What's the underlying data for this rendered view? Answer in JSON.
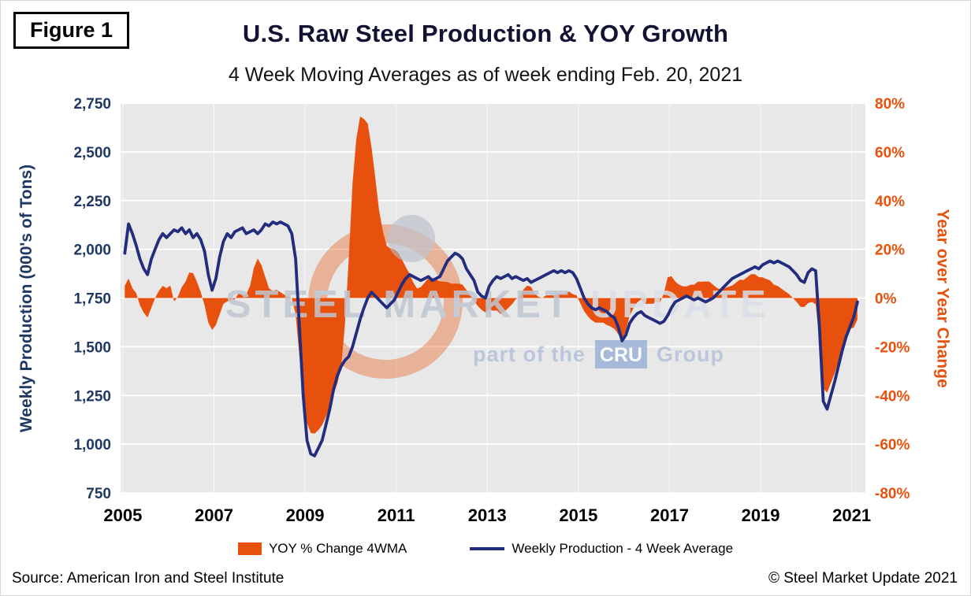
{
  "figure_label": "Figure 1",
  "title": "U.S. Raw Steel Production & YOY Growth",
  "subtitle": "4 Week Moving Averages as of week ending Feb. 20, 2021",
  "watermark": {
    "steel_market": "STEEL MARKET",
    "update": "UPDATE",
    "part_of": "part of the",
    "cru": "CRU",
    "group": "Group"
  },
  "footer": {
    "source": "Source: American Iron and Steel Institute",
    "copyright": "© Steel Market Update 2021"
  },
  "colors": {
    "orange": "#E8510D",
    "navy_line": "#232D7E",
    "navy_axis": "#1F3864",
    "plot_background": "#E8E8E8",
    "gridline": "#FFFFFF"
  },
  "chart_data": {
    "type": "line+area dual-axis time series (4-week moving averages, weekly data 2005 - Feb 2021)",
    "x_start": 2005.042,
    "x_step_years": 0.083333,
    "x_axis": {
      "min": 2004.95,
      "max": 2021.3,
      "ticks": [
        {
          "v": 2005,
          "label": "2005"
        },
        {
          "v": 2007,
          "label": "2007"
        },
        {
          "v": 2009,
          "label": "2009"
        },
        {
          "v": 2011,
          "label": "2011"
        },
        {
          "v": 2013,
          "label": "2013"
        },
        {
          "v": 2015,
          "label": "2015"
        },
        {
          "v": 2017,
          "label": "2017"
        },
        {
          "v": 2019,
          "label": "2019"
        },
        {
          "v": 2021,
          "label": "2021"
        }
      ]
    },
    "left_axis": {
      "title": "Weekly Production (000's of Tons)",
      "color": "#1F3864",
      "min": 750,
      "max": 2750,
      "ticks": [
        {
          "v": 2750,
          "label": "2,750"
        },
        {
          "v": 2500,
          "label": "2,500"
        },
        {
          "v": 2250,
          "label": "2,250"
        },
        {
          "v": 2000,
          "label": "2,000"
        },
        {
          "v": 1750,
          "label": "1,750"
        },
        {
          "v": 1500,
          "label": "1,500"
        },
        {
          "v": 1250,
          "label": "1,250"
        },
        {
          "v": 1000,
          "label": "1,000"
        },
        {
          "v": 750,
          "label": "750"
        }
      ]
    },
    "right_axis": {
      "title": "Year over Year Change",
      "color": "#E8510D",
      "min": -80,
      "max": 80,
      "ticks": [
        {
          "v": 80,
          "label": "80%"
        },
        {
          "v": 60,
          "label": "60%"
        },
        {
          "v": 40,
          "label": "40%"
        },
        {
          "v": 20,
          "label": "20%"
        },
        {
          "v": 0,
          "label": "0%"
        },
        {
          "v": -20,
          "label": "-20%"
        },
        {
          "v": -40,
          "label": "-40%"
        },
        {
          "v": -60,
          "label": "-60%"
        },
        {
          "v": -80,
          "label": "-80%"
        }
      ]
    },
    "series": [
      {
        "name": "YOY % Change 4WMA",
        "type": "area",
        "axis": "right",
        "unit": "%",
        "color": "#E8510D",
        "values": [
          5,
          8,
          4,
          2,
          -3,
          -6,
          -8,
          -4,
          0,
          3,
          5,
          4,
          5.1,
          -1.4,
          0.5,
          4.5,
          6.7,
          10.5,
          10.2,
          6.7,
          2.5,
          -2.9,
          -10.1,
          -13.1,
          -11.1,
          -6.7,
          -2.4,
          -1.4,
          -1,
          -0.5,
          1.9,
          1.4,
          1.5,
          5,
          12.3,
          16.2,
          13.5,
          8.7,
          3.9,
          2.9,
          3.4,
          2.4,
          1.4,
          0.5,
          0,
          -6.7,
          -23.8,
          -39.9,
          -51.4,
          -55.4,
          -55.7,
          -54.2,
          -52.1,
          -48.6,
          -44.6,
          -39.6,
          -35.1,
          -28.2,
          -10.6,
          16,
          47.1,
          65.3,
          74.5,
          73.5,
          71.6,
          61.8,
          49.2,
          35.9,
          27.4,
          21.4,
          20.3,
          20,
          18.7,
          15.9,
          12.8,
          10,
          6.3,
          3.9,
          4.5,
          6.3,
          8.1,
          8.2,
          7.6,
          6.9,
          6.7,
          6.6,
          5.9,
          5.9,
          5.9,
          5.4,
          3.3,
          1.1,
          -1.1,
          -3.3,
          -4.9,
          -5.9,
          -4.7,
          -5.2,
          -5.1,
          -6.6,
          -5.6,
          -4.1,
          -2.6,
          -0.5,
          0.5,
          3.4,
          5.1,
          4.6,
          1.7,
          0.5,
          0,
          1.1,
          1.1,
          1.1,
          1.6,
          1.6,
          1.6,
          2.7,
          1.6,
          1.1,
          -2.2,
          -5.4,
          -7.5,
          -9.1,
          -10.1,
          -10.1,
          -10.1,
          -11.1,
          -11.7,
          -12.7,
          -14.9,
          -17.3,
          -13.3,
          -7.4,
          -4.1,
          -1.8,
          -0.6,
          -2.4,
          -2.4,
          -2.4,
          -1.8,
          -1.8,
          1.9,
          8.5,
          9,
          6.8,
          5.5,
          4.8,
          4.8,
          5.4,
          5.5,
          6.7,
          6.7,
          6.8,
          6.7,
          5.4,
          4.1,
          3.5,
          4,
          4.6,
          5.1,
          6.3,
          7.5,
          7.4,
          8.6,
          9.8,
          9.8,
          8.6,
          8.5,
          7.8,
          7.2,
          5.5,
          4.9,
          3.8,
          2.7,
          1.6,
          0,
          -1.6,
          -3.7,
          -3.7,
          -2.1,
          -1.6,
          -2.6,
          -17.1,
          -37.1,
          -38.9,
          -34.9,
          -30.9,
          -25.9,
          -20.9,
          -15.8,
          -12.6,
          -12.2,
          -8.9
        ]
      },
      {
        "name": "Weekly Production - 4 Week Average",
        "type": "line",
        "axis": "left",
        "unit": "000s of tons",
        "color": "#232D7E",
        "values": [
          1980,
          2130,
          2080,
          2020,
          1950,
          1900,
          1870,
          1950,
          2000,
          2050,
          2080,
          2060,
          2080,
          2100,
          2090,
          2110,
          2080,
          2100,
          2060,
          2080,
          2050,
          1990,
          1870,
          1790,
          1850,
          1960,
          2040,
          2080,
          2060,
          2090,
          2100,
          2110,
          2080,
          2090,
          2100,
          2080,
          2100,
          2130,
          2120,
          2140,
          2130,
          2140,
          2130,
          2120,
          2080,
          1950,
          1600,
          1250,
          1020,
          950,
          940,
          980,
          1020,
          1100,
          1180,
          1280,
          1350,
          1400,
          1430,
          1450,
          1500,
          1570,
          1640,
          1700,
          1750,
          1780,
          1760,
          1740,
          1720,
          1700,
          1720,
          1740,
          1780,
          1820,
          1850,
          1870,
          1860,
          1850,
          1840,
          1850,
          1860,
          1840,
          1850,
          1860,
          1900,
          1940,
          1960,
          1980,
          1970,
          1950,
          1900,
          1870,
          1840,
          1780,
          1760,
          1750,
          1810,
          1840,
          1860,
          1850,
          1860,
          1870,
          1850,
          1860,
          1850,
          1840,
          1850,
          1830,
          1840,
          1850,
          1860,
          1870,
          1880,
          1890,
          1880,
          1890,
          1880,
          1890,
          1880,
          1850,
          1800,
          1750,
          1720,
          1700,
          1690,
          1700,
          1690,
          1680,
          1660,
          1650,
          1600,
          1530,
          1560,
          1620,
          1650,
          1670,
          1680,
          1660,
          1650,
          1640,
          1630,
          1620,
          1630,
          1660,
          1700,
          1730,
          1740,
          1750,
          1760,
          1750,
          1740,
          1750,
          1740,
          1730,
          1740,
          1750,
          1770,
          1790,
          1810,
          1830,
          1850,
          1860,
          1870,
          1880,
          1890,
          1900,
          1910,
          1900,
          1920,
          1930,
          1940,
          1930,
          1940,
          1930,
          1920,
          1910,
          1890,
          1870,
          1840,
          1830,
          1880,
          1900,
          1890,
          1600,
          1220,
          1180,
          1250,
          1320,
          1400,
          1480,
          1550,
          1600,
          1650,
          1730
        ]
      }
    ]
  }
}
